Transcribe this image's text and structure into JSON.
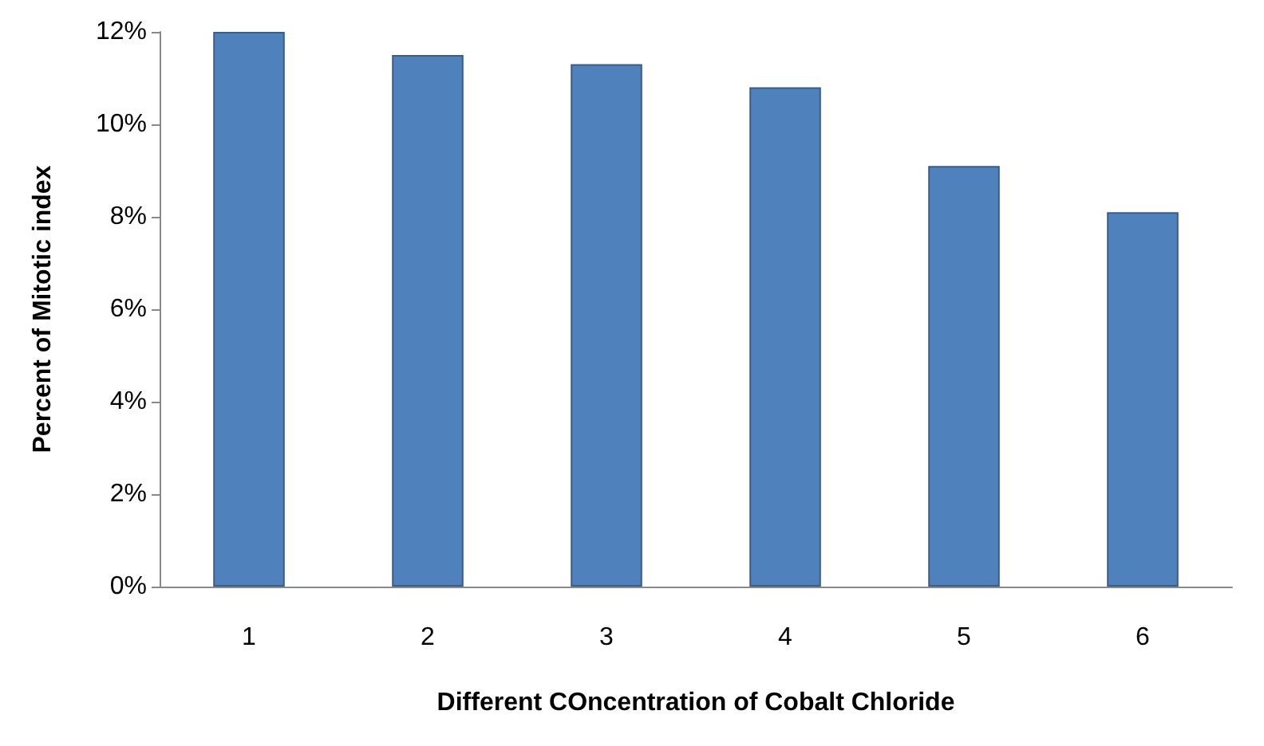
{
  "chart_data": {
    "type": "bar",
    "xlabel": "Different COncentration of Cobalt Chloride",
    "ylabel": "Percent of Mitotic index",
    "categories": [
      "1",
      "2",
      "3",
      "4",
      "5",
      "6"
    ],
    "values": [
      12,
      11.5,
      11.3,
      10.8,
      9.1,
      8.1
    ],
    "color": "#4f81bd",
    "ylim": [
      0,
      12
    ],
    "yticks": [
      {
        "value": 0,
        "label": "0%"
      },
      {
        "value": 2,
        "label": "2%"
      },
      {
        "value": 4,
        "label": "4%"
      },
      {
        "value": 6,
        "label": "6%"
      },
      {
        "value": 8,
        "label": "8%"
      },
      {
        "value": 10,
        "label": "10%"
      },
      {
        "value": 12,
        "label": "12%"
      }
    ],
    "grid": false
  }
}
